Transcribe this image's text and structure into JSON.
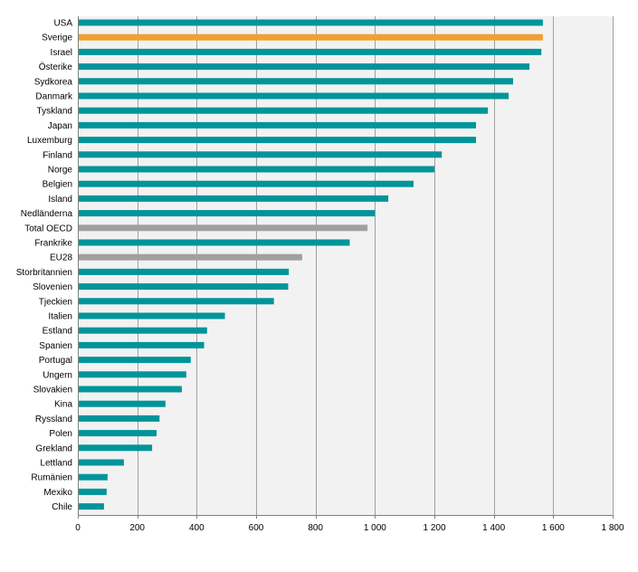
{
  "chart_data": {
    "type": "bar",
    "orientation": "horizontal",
    "title": "",
    "xlabel": "",
    "ylabel": "",
    "xlim": [
      0,
      1800
    ],
    "x_ticks": [
      0,
      200,
      400,
      600,
      800,
      1000,
      1200,
      1400,
      1600,
      1800
    ],
    "x_tick_labels": [
      "0",
      "200",
      "400",
      "600",
      "800",
      "1 000",
      "1 200",
      "1 400",
      "1 600",
      "1 800"
    ],
    "grid": "vertical",
    "categories": [
      "USA",
      "Sverige",
      "Israel",
      "Österike",
      "Sydkorea",
      "Danmark",
      "Tyskland",
      "Japan",
      "Luxemburg",
      "Finland",
      "Norge",
      "Belgien",
      "Island",
      "Nedländerna",
      "Total OECD",
      "Frankrike",
      "EU28",
      "Storbritannien",
      "Slovenien",
      "Tjeckien",
      "Italien",
      "Estland",
      "Spanien",
      "Portugal",
      "Ungern",
      "Slovakien",
      "Kina",
      "Ryssland",
      "Polen",
      "Grekland",
      "Lettland",
      "Rumänien",
      "Mexiko",
      "Chile"
    ],
    "values": [
      1565,
      1565,
      1560,
      1520,
      1465,
      1450,
      1380,
      1340,
      1340,
      1225,
      1200,
      1130,
      1045,
      1000,
      975,
      915,
      755,
      710,
      708,
      660,
      495,
      435,
      425,
      380,
      365,
      350,
      295,
      275,
      265,
      250,
      155,
      100,
      97,
      88
    ],
    "colors": {
      "default": "#00959a",
      "highlight": "#f0a030",
      "aggregate": "#a0a0a0",
      "plot_background": "#f2f2f2",
      "gridline": "#a0a0a0"
    },
    "highlight_categories": [
      "Sverige"
    ],
    "aggregate_categories": [
      "Total OECD",
      "EU28"
    ]
  }
}
